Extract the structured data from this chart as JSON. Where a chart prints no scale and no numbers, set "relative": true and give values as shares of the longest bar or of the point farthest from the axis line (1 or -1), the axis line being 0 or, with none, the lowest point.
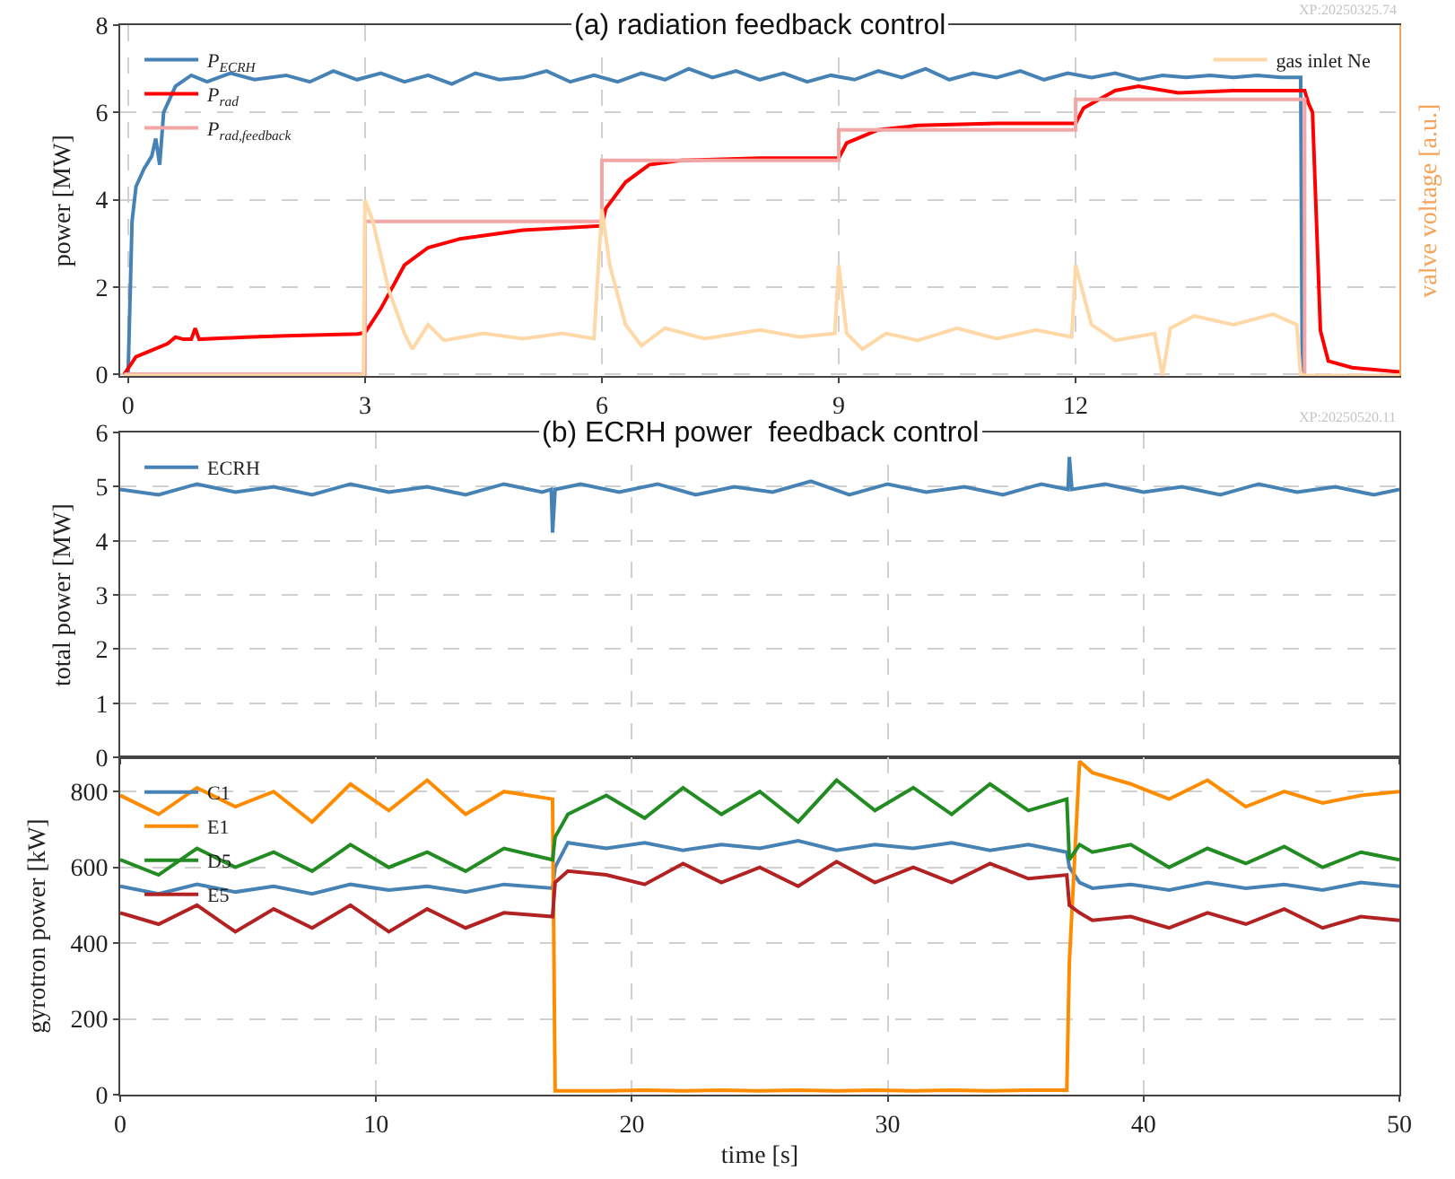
{
  "chart_data": [
    {
      "type": "line",
      "title": "(a) radiation feedback control",
      "ylabel": "power [MW]",
      "xlim": [
        -0.1,
        16.1
      ],
      "xticks": [
        0,
        3,
        6,
        9,
        12
      ],
      "ylim": [
        -0.05,
        8
      ],
      "yticks": [
        0,
        2,
        4,
        6,
        8
      ],
      "grid": true,
      "legend": "top left",
      "annotations": [
        "XP:20250325.74"
      ],
      "series": [
        {
          "name": "P$_{ECRH}$",
          "color": "#4682b4",
          "x": [
            -0.05,
            0,
            0.05,
            0.1,
            0.2,
            0.3,
            0.35,
            0.4,
            0.45,
            0.6,
            0.8,
            1.0,
            1.3,
            1.6,
            2.0,
            2.3,
            2.6,
            2.9,
            3.2,
            3.5,
            3.8,
            4.1,
            4.4,
            4.7,
            5.0,
            5.3,
            5.6,
            5.9,
            6.2,
            6.5,
            6.8,
            7.1,
            7.4,
            7.7,
            8.0,
            8.3,
            8.6,
            8.9,
            9.2,
            9.5,
            9.8,
            10.1,
            10.4,
            10.7,
            11.0,
            11.3,
            11.6,
            11.9,
            12.2,
            12.5,
            12.8,
            13.1,
            13.4,
            13.7,
            14.0,
            14.3,
            14.6,
            14.85,
            14.87,
            14.9
          ],
          "values": [
            0,
            0,
            3.5,
            4.3,
            4.7,
            5.0,
            5.4,
            4.8,
            6.0,
            6.6,
            6.85,
            6.7,
            6.9,
            6.75,
            6.85,
            6.7,
            6.95,
            6.75,
            6.9,
            6.7,
            6.85,
            6.65,
            6.9,
            6.75,
            6.8,
            6.95,
            6.7,
            6.85,
            6.7,
            6.9,
            6.75,
            7.0,
            6.8,
            6.95,
            6.75,
            6.9,
            6.7,
            6.85,
            6.75,
            6.95,
            6.8,
            7.0,
            6.75,
            6.9,
            6.8,
            6.95,
            6.75,
            6.9,
            6.8,
            6.9,
            6.75,
            6.85,
            6.8,
            6.85,
            6.8,
            6.85,
            6.8,
            6.8,
            0.1,
            0.05
          ]
        },
        {
          "name": "P$_{rad}$",
          "color": "#ff0000",
          "x": [
            -0.05,
            0.1,
            0.3,
            0.5,
            0.6,
            0.7,
            0.8,
            0.85,
            0.9,
            1.5,
            2,
            2.9,
            3.0,
            3.2,
            3.5,
            3.8,
            4.2,
            5,
            6,
            6.05,
            6.3,
            6.6,
            7,
            8,
            9,
            9.1,
            9.5,
            10,
            11,
            12,
            12.1,
            12.5,
            12.8,
            13.3,
            14,
            14.9,
            14.95,
            15.0,
            15.1,
            15.2,
            15.5,
            16.1
          ],
          "values": [
            0,
            0.4,
            0.55,
            0.7,
            0.85,
            0.8,
            0.8,
            1.05,
            0.8,
            0.85,
            0.88,
            0.92,
            0.95,
            1.5,
            2.5,
            2.9,
            3.1,
            3.3,
            3.4,
            3.8,
            4.4,
            4.8,
            4.9,
            4.95,
            4.95,
            5.3,
            5.6,
            5.7,
            5.75,
            5.75,
            6.1,
            6.5,
            6.6,
            6.45,
            6.5,
            6.5,
            6.2,
            6.0,
            1.0,
            0.3,
            0.15,
            0.05
          ]
        },
        {
          "name": "P$_{rad,feedback}$",
          "type": "step",
          "color": "#f4a6a6",
          "x": [
            -0.05,
            3,
            6,
            9,
            12,
            14.9
          ],
          "values": [
            0,
            3.5,
            4.9,
            5.6,
            6.3,
            0
          ]
        }
      ]
    },
    {
      "type": "line",
      "relative": true,
      "ylabel": "valve voltage [a.u.]",
      "xlim": [
        -0.1,
        16.1
      ],
      "tick_labels": false,
      "legend": "top right",
      "series": [
        {
          "name": "gas inlet Ne",
          "color": "#ffd8a8",
          "x": [
            -0.05,
            2.98,
            3.0,
            3.1,
            3.3,
            3.5,
            3.6,
            3.8,
            4,
            4.5,
            5,
            5.5,
            5.9,
            6.0,
            6.1,
            6.3,
            6.5,
            6.8,
            7.3,
            8,
            8.5,
            8.95,
            9.0,
            9.1,
            9.3,
            9.6,
            10,
            10.5,
            11,
            11.5,
            11.95,
            12.0,
            12.2,
            12.5,
            13.0,
            13.1,
            13.2,
            13.5,
            14,
            14.5,
            14.8,
            14.85,
            16.1
          ],
          "values": [
            0,
            0,
            1,
            0.88,
            0.49,
            0.24,
            0.15,
            0.29,
            0.2,
            0.24,
            0.21,
            0.24,
            0.21,
            0.95,
            0.63,
            0.29,
            0.17,
            0.27,
            0.21,
            0.26,
            0.22,
            0.24,
            0.63,
            0.24,
            0.15,
            0.24,
            0.2,
            0.27,
            0.21,
            0.26,
            0.22,
            0.63,
            0.29,
            0.2,
            0.24,
            0,
            0.27,
            0.34,
            0.29,
            0.35,
            0.29,
            0,
            0
          ]
        }
      ]
    },
    {
      "type": "line",
      "title": "(b) ECRH power  feedback control",
      "ylabel": "total power [MW]",
      "xlim": [
        0,
        50
      ],
      "xticks": [
        0,
        10,
        20,
        30,
        40,
        50
      ],
      "ylim": [
        0,
        6
      ],
      "yticks": [
        0,
        1,
        2,
        3,
        4,
        5,
        6
      ],
      "tick_labels": "y",
      "grid": true,
      "legend": "top left",
      "annotations": [
        "XP:20250520.11"
      ],
      "series": [
        {
          "name": "ECRH",
          "color": "#4682b4",
          "x": [
            0,
            1.5,
            3,
            4.5,
            6,
            7.5,
            9,
            10.5,
            12,
            13.5,
            15,
            16.5,
            16.85,
            16.9,
            17.0,
            18,
            19.5,
            21,
            22.5,
            24,
            25.5,
            27,
            28.5,
            30,
            31.5,
            33,
            34.5,
            36,
            37.05,
            37.1,
            37.2,
            38.5,
            40,
            41.5,
            43,
            44.5,
            46,
            47.5,
            49,
            50
          ],
          "values": [
            4.95,
            4.85,
            5.05,
            4.9,
            5.0,
            4.85,
            5.05,
            4.9,
            5.0,
            4.85,
            5.05,
            4.9,
            4.95,
            4.15,
            4.95,
            5.05,
            4.9,
            5.05,
            4.85,
            5.0,
            4.9,
            5.1,
            4.85,
            5.05,
            4.9,
            5.0,
            4.85,
            5.05,
            4.95,
            5.55,
            4.95,
            5.05,
            4.9,
            5.0,
            4.85,
            5.05,
            4.9,
            5.0,
            4.85,
            4.95
          ]
        }
      ]
    },
    {
      "type": "line",
      "xlabel": "time [s]",
      "ylabel": "gyrotron power [kW]",
      "xlim": [
        0,
        50
      ],
      "xticks": [
        0,
        10,
        20,
        30,
        40,
        50
      ],
      "ylim": [
        0,
        890
      ],
      "yticks": [
        0,
        200,
        400,
        600,
        800
      ],
      "grid": true,
      "legend": "top left",
      "x": [
        0,
        1.5,
        3,
        4.5,
        6,
        7.5,
        9,
        10.5,
        12,
        13.5,
        15,
        16.9,
        17.0,
        17.5,
        19,
        20.5,
        22,
        23.5,
        25,
        26.5,
        28,
        29.5,
        31,
        32.5,
        34,
        35.5,
        37.0,
        37.1,
        37.5,
        38,
        39.5,
        41,
        42.5,
        44,
        45.5,
        47,
        48.5,
        50
      ],
      "series": [
        {
          "name": "C1",
          "color": "#4682b4",
          "values": [
            550,
            530,
            555,
            535,
            550,
            530,
            555,
            540,
            550,
            535,
            555,
            545,
            600,
            665,
            650,
            665,
            645,
            660,
            650,
            670,
            645,
            660,
            650,
            665,
            645,
            660,
            640,
            600,
            560,
            545,
            555,
            540,
            560,
            545,
            555,
            540,
            560,
            550
          ]
        },
        {
          "name": "E1",
          "color": "#ff8c00",
          "values": [
            790,
            740,
            810,
            760,
            800,
            720,
            820,
            750,
            830,
            740,
            800,
            780,
            10,
            10,
            10,
            12,
            10,
            12,
            10,
            12,
            10,
            12,
            10,
            12,
            10,
            12,
            12,
            350,
            880,
            850,
            820,
            780,
            830,
            760,
            800,
            770,
            790,
            800
          ]
        },
        {
          "name": "D5",
          "color": "#228b22",
          "values": [
            620,
            580,
            650,
            600,
            640,
            590,
            660,
            600,
            640,
            590,
            650,
            620,
            680,
            740,
            790,
            730,
            810,
            740,
            800,
            720,
            830,
            750,
            810,
            740,
            820,
            750,
            780,
            620,
            660,
            640,
            660,
            600,
            650,
            610,
            655,
            600,
            640,
            620
          ]
        },
        {
          "name": "E5",
          "color": "#b22222",
          "values": [
            480,
            450,
            500,
            430,
            490,
            440,
            500,
            430,
            490,
            440,
            480,
            470,
            560,
            590,
            580,
            555,
            610,
            560,
            600,
            550,
            615,
            560,
            600,
            560,
            610,
            570,
            580,
            500,
            480,
            460,
            470,
            440,
            480,
            450,
            490,
            440,
            470,
            460
          ]
        }
      ]
    }
  ]
}
